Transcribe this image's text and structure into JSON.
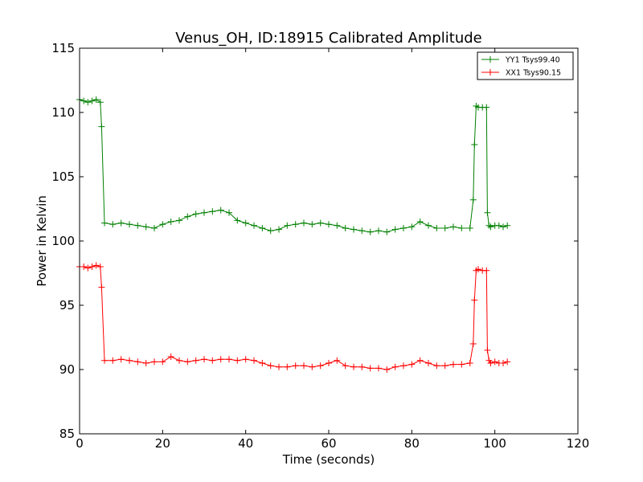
{
  "chart_data": {
    "type": "line",
    "title": "Venus_OH, ID:18915 Calibrated Amplitude",
    "xlabel": "Time (seconds)",
    "ylabel": "Power in Kelvin",
    "xlim": [
      0,
      120
    ],
    "ylim": [
      85,
      115
    ],
    "xticks": [
      0,
      20,
      40,
      60,
      80,
      100,
      120
    ],
    "yticks": [
      85,
      90,
      95,
      100,
      105,
      110,
      115
    ],
    "grid": false,
    "legend_position": "top-right",
    "marker": "+",
    "series": [
      {
        "name": "YY1 Tsys99.40",
        "color": "#008000",
        "x": [
          0,
          1,
          2,
          3,
          4,
          5,
          5.3,
          6,
          8,
          10,
          12,
          14,
          16,
          18,
          20,
          22,
          24,
          26,
          28,
          30,
          32,
          34,
          36,
          38,
          40,
          42,
          44,
          46,
          48,
          50,
          52,
          54,
          56,
          58,
          60,
          62,
          64,
          66,
          68,
          70,
          72,
          74,
          76,
          78,
          80,
          82,
          84,
          86,
          88,
          90,
          92,
          94,
          94.8,
          95.1,
          95.5,
          96,
          97,
          98,
          98.2,
          98.6,
          99,
          100,
          101,
          102,
          103
        ],
        "y": [
          111.0,
          110.9,
          110.8,
          110.9,
          111.0,
          110.8,
          108.9,
          101.4,
          101.3,
          101.4,
          101.3,
          101.2,
          101.1,
          101.0,
          101.3,
          101.5,
          101.6,
          101.9,
          102.1,
          102.2,
          102.3,
          102.4,
          102.2,
          101.6,
          101.4,
          101.2,
          101.0,
          100.8,
          100.9,
          101.2,
          101.3,
          101.4,
          101.3,
          101.4,
          101.3,
          101.2,
          101.0,
          100.9,
          100.8,
          100.7,
          100.8,
          100.7,
          100.9,
          101.0,
          101.1,
          101.5,
          101.2,
          101.0,
          101.0,
          101.1,
          101.0,
          101.0,
          103.2,
          107.5,
          110.5,
          110.4,
          110.4,
          110.4,
          102.2,
          101.2,
          101.1,
          101.2,
          101.2,
          101.1,
          101.2
        ]
      },
      {
        "name": "XX1 Tsys90.15",
        "color": "#ff0000",
        "x": [
          0,
          1,
          2,
          3,
          4,
          5,
          5.3,
          6,
          8,
          10,
          12,
          14,
          16,
          18,
          20,
          22,
          24,
          26,
          28,
          30,
          32,
          34,
          36,
          38,
          40,
          42,
          44,
          46,
          48,
          50,
          52,
          54,
          56,
          58,
          60,
          62,
          64,
          66,
          68,
          70,
          72,
          74,
          76,
          78,
          80,
          82,
          84,
          86,
          88,
          90,
          92,
          94,
          94.8,
          95.1,
          95.5,
          96,
          97,
          98,
          98.2,
          98.6,
          99,
          100,
          101,
          102,
          103
        ],
        "y": [
          98.0,
          98.0,
          97.9,
          98.0,
          98.1,
          98.0,
          96.4,
          90.7,
          90.7,
          90.8,
          90.7,
          90.6,
          90.5,
          90.6,
          90.6,
          91.0,
          90.7,
          90.6,
          90.7,
          90.8,
          90.7,
          90.8,
          90.8,
          90.7,
          90.8,
          90.7,
          90.5,
          90.3,
          90.2,
          90.2,
          90.3,
          90.3,
          90.2,
          90.3,
          90.5,
          90.7,
          90.3,
          90.2,
          90.2,
          90.1,
          90.1,
          90.0,
          90.2,
          90.3,
          90.4,
          90.7,
          90.5,
          90.3,
          90.3,
          90.4,
          90.4,
          90.5,
          92.0,
          95.4,
          97.7,
          97.8,
          97.7,
          97.7,
          91.5,
          90.7,
          90.5,
          90.6,
          90.5,
          90.5,
          90.6
        ]
      }
    ]
  }
}
